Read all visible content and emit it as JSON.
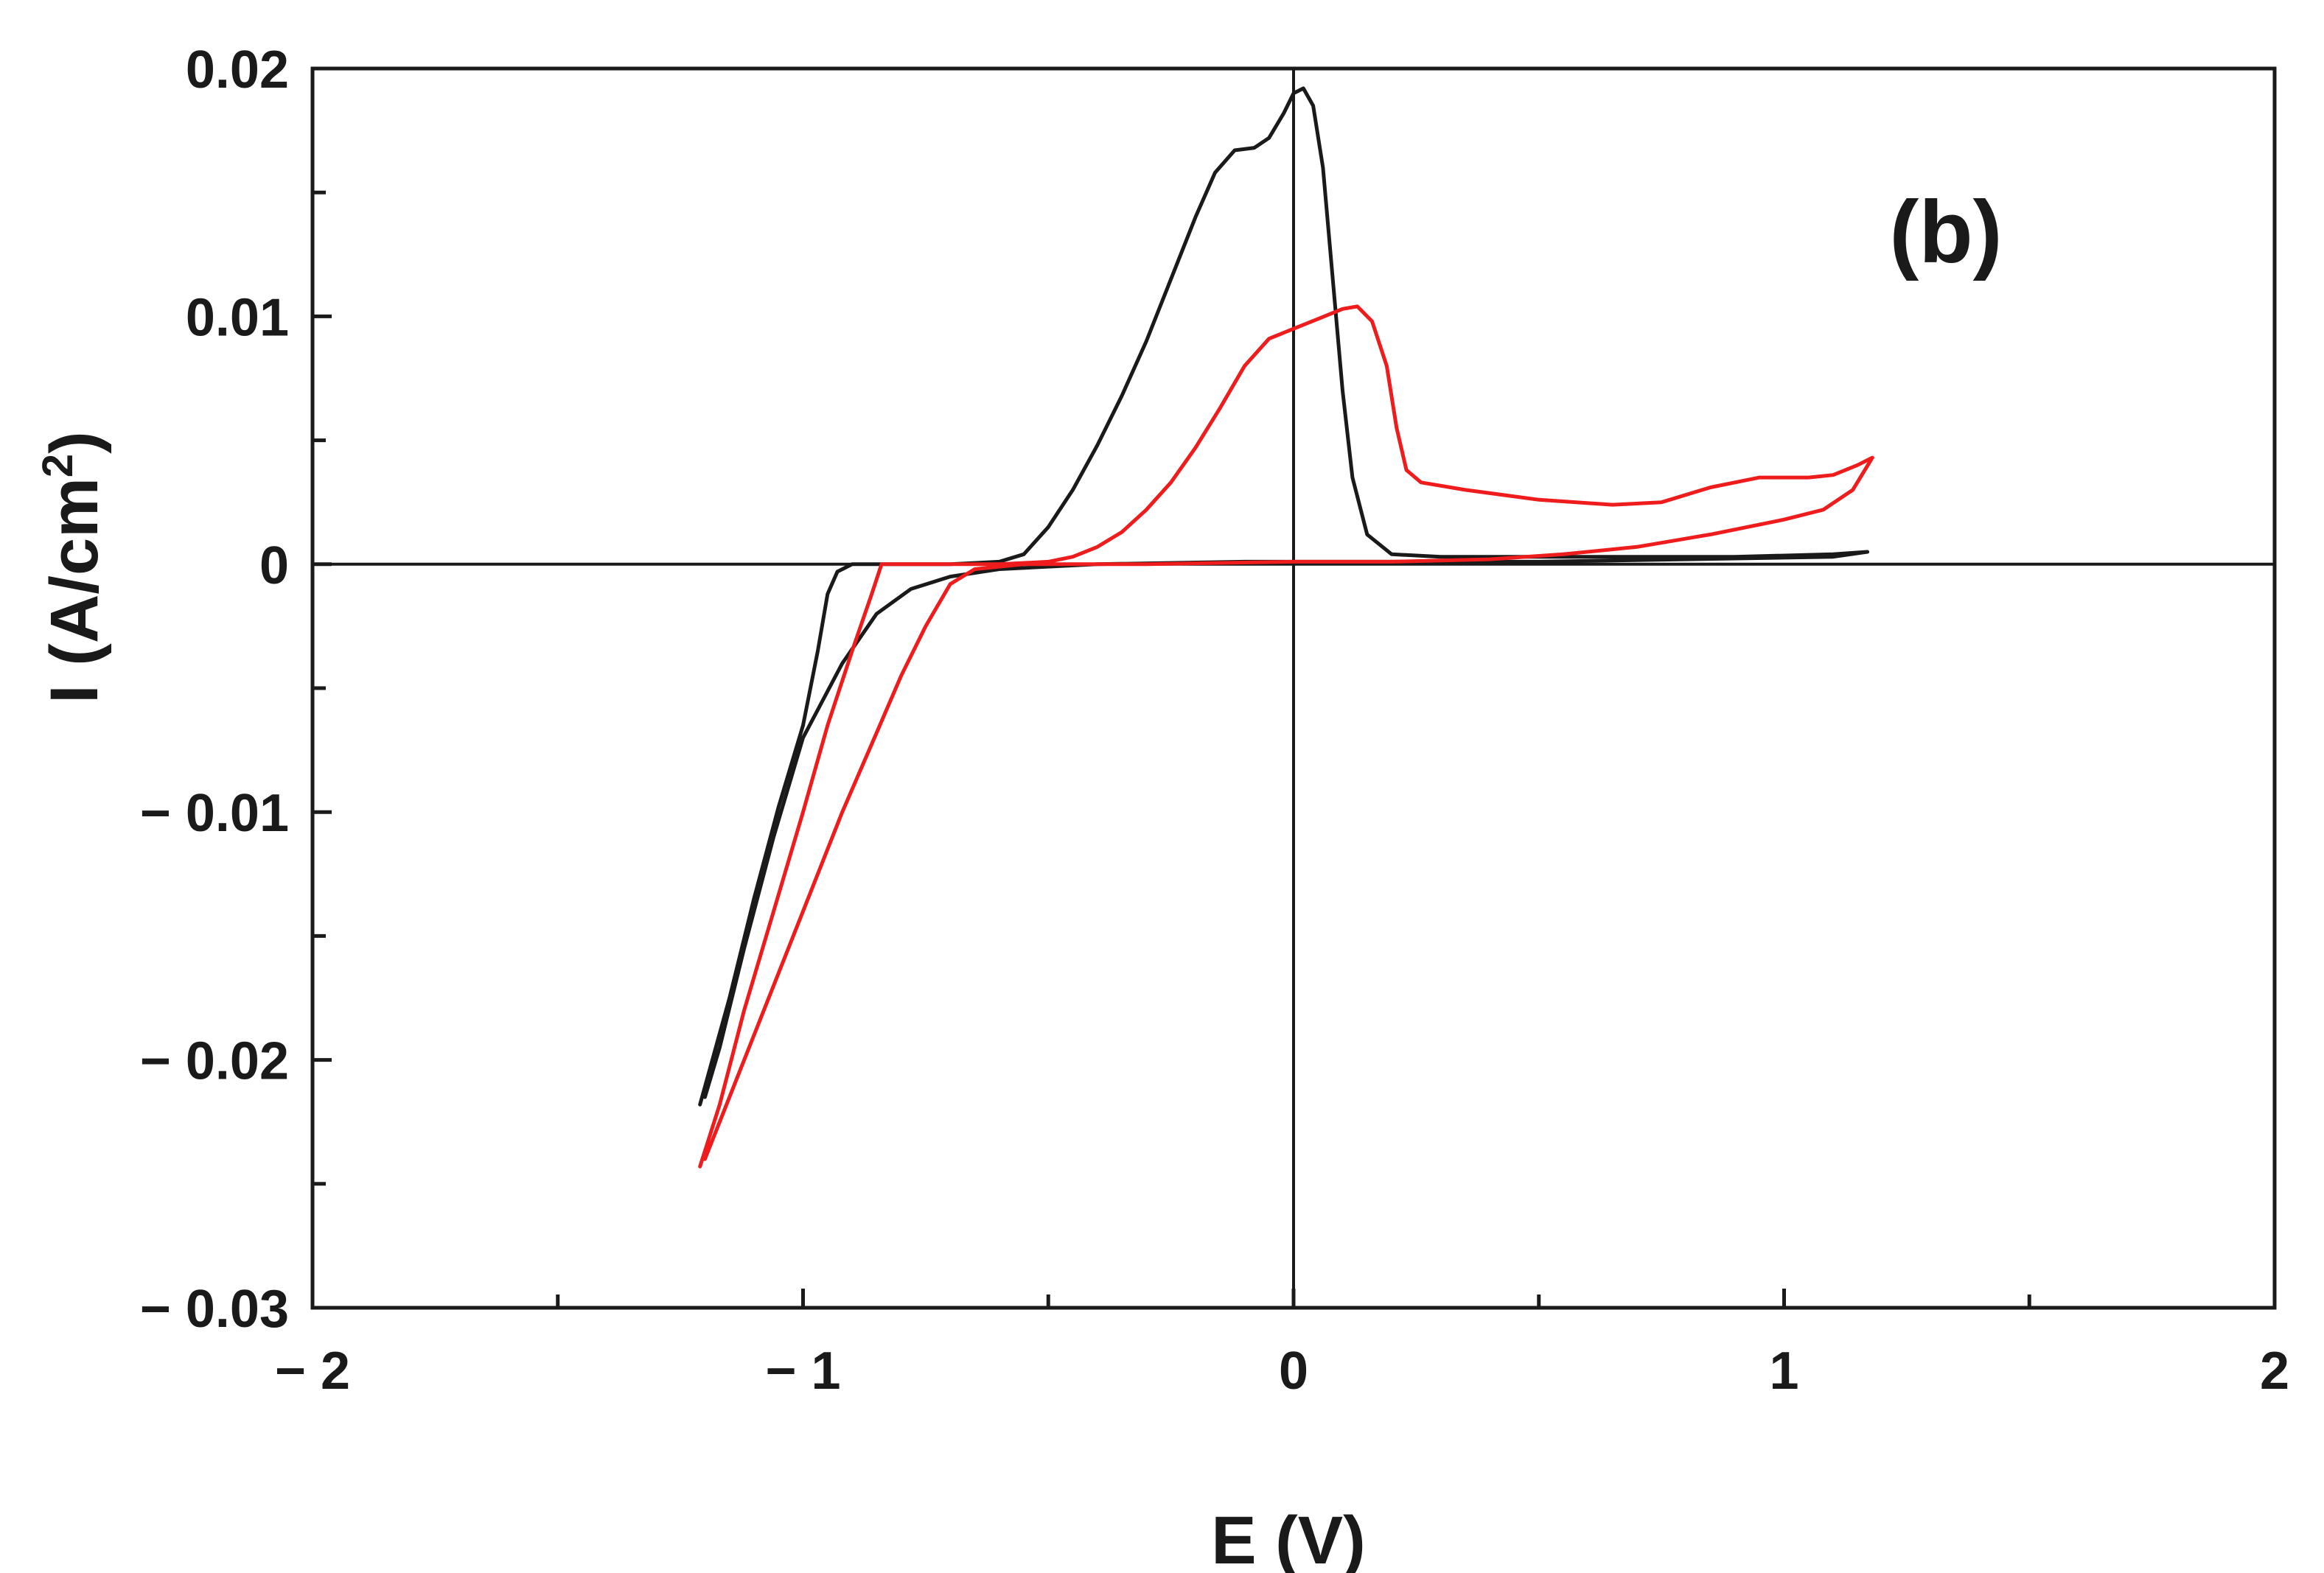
{
  "chart_data": {
    "type": "line",
    "panel_label": "(b)",
    "xlabel": "E (V)",
    "ylabel_main": "I (A/cm",
    "ylabel_sup": "2",
    "ylabel_close": ")",
    "xlim": [
      -2,
      2
    ],
    "ylim": [
      -0.03,
      0.02
    ],
    "x_ticks": [
      {
        "value": -2,
        "label": "− 2"
      },
      {
        "value": -1,
        "label": "− 1"
      },
      {
        "value": 0,
        "label": "0"
      },
      {
        "value": 1,
        "label": "1"
      },
      {
        "value": 2,
        "label": "2"
      }
    ],
    "x_minor_ticks": [
      -1.5,
      -0.5,
      0.5,
      1.5
    ],
    "y_ticks": [
      {
        "value": 0.02,
        "label": "0.02"
      },
      {
        "value": 0.01,
        "label": "0.01"
      },
      {
        "value": 0,
        "label": "0"
      },
      {
        "value": -0.01,
        "label": "− 0.01"
      },
      {
        "value": -0.02,
        "label": "− 0.02"
      },
      {
        "value": -0.03,
        "label": "− 0.03"
      }
    ],
    "y_minor_ticks": [
      0.015,
      0.005,
      -0.005,
      -0.015,
      -0.025
    ],
    "zero_lines": {
      "x": 0,
      "y": 0
    },
    "colors": {
      "axis": "#1a1a1a",
      "series_black": "#1a1a1a",
      "series_red": "#ee1c1c"
    },
    "series": [
      {
        "color": "#1a1a1a",
        "points": [
          [
            -1.21,
            -0.0218
          ],
          [
            -1.15,
            -0.0175
          ],
          [
            -1.1,
            -0.0135
          ],
          [
            -1.05,
            -0.0098
          ],
          [
            -1.0,
            -0.0065
          ],
          [
            -0.97,
            -0.0035
          ],
          [
            -0.95,
            -0.0012
          ],
          [
            -0.93,
            -0.0003
          ],
          [
            -0.9,
            0.0
          ],
          [
            -0.8,
            0.0
          ],
          [
            -0.7,
            0.0
          ],
          [
            -0.6,
            0.0001
          ],
          [
            -0.55,
            0.0004
          ],
          [
            -0.5,
            0.0015
          ],
          [
            -0.45,
            0.003
          ],
          [
            -0.4,
            0.0048
          ],
          [
            -0.35,
            0.0068
          ],
          [
            -0.3,
            0.009
          ],
          [
            -0.25,
            0.0115
          ],
          [
            -0.2,
            0.014
          ],
          [
            -0.16,
            0.0158
          ],
          [
            -0.12,
            0.0167
          ],
          [
            -0.08,
            0.0168
          ],
          [
            -0.05,
            0.0172
          ],
          [
            -0.02,
            0.0182
          ],
          [
            0.0,
            0.019
          ],
          [
            0.02,
            0.0192
          ],
          [
            0.04,
            0.0185
          ],
          [
            0.06,
            0.016
          ],
          [
            0.08,
            0.0115
          ],
          [
            0.1,
            0.007
          ],
          [
            0.12,
            0.0035
          ],
          [
            0.15,
            0.0012
          ],
          [
            0.2,
            0.0004
          ],
          [
            0.3,
            0.0003
          ],
          [
            0.5,
            0.0003
          ],
          [
            0.7,
            0.0003
          ],
          [
            0.9,
            0.0003
          ],
          [
            1.1,
            0.0004
          ],
          [
            1.17,
            0.0005
          ],
          [
            1.1,
            0.0003
          ],
          [
            0.8,
            0.0002
          ],
          [
            0.5,
            0.0001
          ],
          [
            0.2,
            0.0001
          ],
          [
            -0.1,
            0.0001
          ],
          [
            -0.4,
            0.0
          ],
          [
            -0.6,
            -0.0002
          ],
          [
            -0.7,
            -0.0005
          ],
          [
            -0.78,
            -0.001
          ],
          [
            -0.85,
            -0.002
          ],
          [
            -0.92,
            -0.004
          ],
          [
            -1.0,
            -0.007
          ],
          [
            -1.06,
            -0.011
          ],
          [
            -1.12,
            -0.0155
          ],
          [
            -1.17,
            -0.0195
          ],
          [
            -1.2,
            -0.0215
          ]
        ]
      },
      {
        "color": "#ee1c1c",
        "points": [
          [
            -1.21,
            -0.0243
          ],
          [
            -1.17,
            -0.0218
          ],
          [
            -1.12,
            -0.018
          ],
          [
            -1.06,
            -0.014
          ],
          [
            -1.0,
            -0.01
          ],
          [
            -0.95,
            -0.0065
          ],
          [
            -0.9,
            -0.0035
          ],
          [
            -0.86,
            -0.0012
          ],
          [
            -0.84,
            0.0
          ],
          [
            -0.8,
            0.0
          ],
          [
            -0.7,
            0.0
          ],
          [
            -0.6,
            0.0
          ],
          [
            -0.5,
            0.0001
          ],
          [
            -0.45,
            0.0003
          ],
          [
            -0.4,
            0.0007
          ],
          [
            -0.35,
            0.0013
          ],
          [
            -0.3,
            0.0022
          ],
          [
            -0.25,
            0.0033
          ],
          [
            -0.2,
            0.0047
          ],
          [
            -0.15,
            0.0063
          ],
          [
            -0.1,
            0.008
          ],
          [
            -0.05,
            0.0091
          ],
          [
            0.0,
            0.0095
          ],
          [
            0.05,
            0.0099
          ],
          [
            0.1,
            0.0103
          ],
          [
            0.13,
            0.0104
          ],
          [
            0.16,
            0.0098
          ],
          [
            0.19,
            0.008
          ],
          [
            0.21,
            0.0055
          ],
          [
            0.23,
            0.0038
          ],
          [
            0.26,
            0.0033
          ],
          [
            0.35,
            0.003
          ],
          [
            0.5,
            0.0026
          ],
          [
            0.65,
            0.0024
          ],
          [
            0.75,
            0.0025
          ],
          [
            0.85,
            0.0031
          ],
          [
            0.95,
            0.0035
          ],
          [
            1.05,
            0.0035
          ],
          [
            1.1,
            0.0036
          ],
          [
            1.15,
            0.004
          ],
          [
            1.18,
            0.0043
          ],
          [
            1.14,
            0.003
          ],
          [
            1.08,
            0.0022
          ],
          [
            1.0,
            0.0018
          ],
          [
            0.85,
            0.0012
          ],
          [
            0.7,
            0.0007
          ],
          [
            0.55,
            0.0004
          ],
          [
            0.4,
            0.0002
          ],
          [
            0.2,
            0.0001
          ],
          [
            0.0,
            0.0001
          ],
          [
            -0.3,
            0.0
          ],
          [
            -0.55,
            0.0
          ],
          [
            -0.65,
            -0.0002
          ],
          [
            -0.7,
            -0.0008
          ],
          [
            -0.75,
            -0.0025
          ],
          [
            -0.8,
            -0.0045
          ],
          [
            -0.85,
            -0.0068
          ],
          [
            -0.92,
            -0.01
          ],
          [
            -1.0,
            -0.014
          ],
          [
            -1.08,
            -0.018
          ],
          [
            -1.15,
            -0.0215
          ],
          [
            -1.2,
            -0.024
          ]
        ]
      }
    ]
  }
}
